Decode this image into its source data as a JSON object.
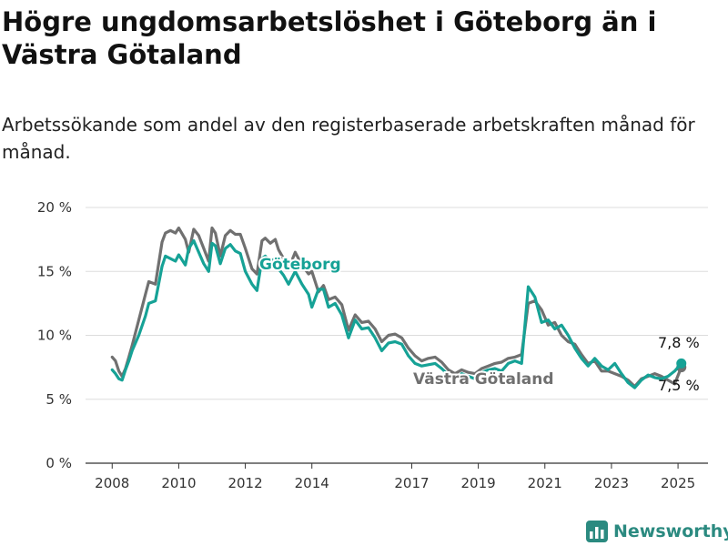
{
  "chart_data": {
    "type": "line",
    "title": "Högre ungdomsarbetslöshet i Göteborg än i Västra Götaland",
    "subtitle": "Arbetssökande som andel av den registerbaserade arbetskraften månad för månad.",
    "y_ticks": [
      "0 %",
      "5 %",
      "10 %",
      "15 %",
      "20 %"
    ],
    "y_tick_values": [
      0,
      5,
      10,
      15,
      20
    ],
    "x_ticks": [
      "2008",
      "2010",
      "2012",
      "2014",
      "2017",
      "2019",
      "2021",
      "2023",
      "2025"
    ],
    "x_tick_values": [
      2008,
      2010,
      2012,
      2014,
      2017,
      2019,
      2021,
      2023,
      2025
    ],
    "xlim": [
      2007.2,
      2025.9
    ],
    "ylim": [
      0,
      20
    ],
    "grid": true,
    "series": [
      {
        "name": "Västra Götaland",
        "color": "#707070",
        "end_label": "7,5 %",
        "x": [
          2008.0,
          2008.1,
          2008.2,
          2008.3,
          2008.4,
          2008.5,
          2008.6,
          2008.8,
          2009.0,
          2009.1,
          2009.3,
          2009.5,
          2009.6,
          2009.75,
          2009.9,
          2010.0,
          2010.2,
          2010.3,
          2010.45,
          2010.6,
          2010.75,
          2010.9,
          2011.0,
          2011.1,
          2011.25,
          2011.4,
          2011.55,
          2011.7,
          2011.85,
          2012.0,
          2012.2,
          2012.35,
          2012.5,
          2012.6,
          2012.75,
          2012.9,
          2013.0,
          2013.15,
          2013.3,
          2013.5,
          2013.7,
          2013.9,
          2014.0,
          2014.2,
          2014.35,
          2014.5,
          2014.7,
          2014.9,
          2015.1,
          2015.3,
          2015.5,
          2015.7,
          2015.9,
          2016.1,
          2016.3,
          2016.5,
          2016.7,
          2016.9,
          2017.1,
          2017.3,
          2017.5,
          2017.7,
          2017.9,
          2018.1,
          2018.3,
          2018.5,
          2018.7,
          2018.9,
          2019.1,
          2019.3,
          2019.5,
          2019.7,
          2019.9,
          2020.1,
          2020.3,
          2020.5,
          2020.7,
          2020.9,
          2021.1,
          2021.3,
          2021.5,
          2021.7,
          2021.9,
          2022.1,
          2022.3,
          2022.5,
          2022.7,
          2022.9,
          2023.1,
          2023.3,
          2023.5,
          2023.7,
          2023.9,
          2024.1,
          2024.3,
          2024.5,
          2024.7,
          2024.9,
          2025.1
        ],
        "y": [
          8.3,
          8.0,
          7.2,
          6.8,
          7.4,
          8.3,
          9.2,
          11.2,
          13.2,
          14.2,
          14.0,
          17.3,
          18.0,
          18.2,
          18.0,
          18.4,
          17.5,
          16.5,
          18.3,
          17.8,
          16.8,
          15.8,
          18.4,
          18.0,
          16.2,
          17.8,
          18.2,
          17.9,
          17.9,
          16.8,
          15.2,
          14.8,
          17.4,
          17.6,
          17.2,
          17.5,
          16.7,
          16.0,
          15.2,
          16.5,
          15.5,
          14.8,
          15.0,
          13.4,
          13.9,
          12.8,
          13.0,
          12.4,
          10.4,
          11.6,
          11.0,
          11.1,
          10.5,
          9.5,
          10.0,
          10.1,
          9.8,
          9.0,
          8.4,
          8.0,
          8.2,
          8.3,
          7.9,
          7.3,
          7.0,
          7.3,
          7.1,
          7.0,
          7.4,
          7.6,
          7.8,
          7.9,
          8.2,
          8.3,
          8.5,
          12.5,
          12.7,
          12.0,
          10.8,
          11.0,
          10.0,
          9.5,
          9.3,
          8.5,
          7.8,
          8.0,
          7.2,
          7.2,
          7.0,
          6.8,
          6.5,
          6.0,
          6.6,
          6.8,
          7.0,
          6.8,
          6.5,
          6.2,
          7.5
        ]
      },
      {
        "name": "Göteborg",
        "color": "#16a296",
        "end_label": "7,8 %",
        "x": [
          2008.0,
          2008.1,
          2008.2,
          2008.3,
          2008.4,
          2008.5,
          2008.6,
          2008.8,
          2009.0,
          2009.1,
          2009.3,
          2009.5,
          2009.6,
          2009.75,
          2009.9,
          2010.0,
          2010.2,
          2010.3,
          2010.45,
          2010.6,
          2010.75,
          2010.9,
          2011.0,
          2011.1,
          2011.25,
          2011.4,
          2011.55,
          2011.7,
          2011.85,
          2012.0,
          2012.2,
          2012.35,
          2012.5,
          2012.6,
          2012.75,
          2012.9,
          2013.0,
          2013.15,
          2013.3,
          2013.5,
          2013.7,
          2013.9,
          2014.0,
          2014.2,
          2014.35,
          2014.5,
          2014.7,
          2014.9,
          2015.1,
          2015.3,
          2015.5,
          2015.7,
          2015.9,
          2016.1,
          2016.3,
          2016.5,
          2016.7,
          2016.9,
          2017.1,
          2017.3,
          2017.5,
          2017.7,
          2017.9,
          2018.1,
          2018.3,
          2018.5,
          2018.7,
          2018.9,
          2019.1,
          2019.3,
          2019.5,
          2019.7,
          2019.9,
          2020.1,
          2020.3,
          2020.5,
          2020.7,
          2020.9,
          2021.1,
          2021.3,
          2021.5,
          2021.7,
          2021.9,
          2022.1,
          2022.3,
          2022.5,
          2022.7,
          2022.9,
          2023.1,
          2023.3,
          2023.5,
          2023.7,
          2023.9,
          2024.1,
          2024.3,
          2024.5,
          2024.7,
          2024.9,
          2025.1
        ],
        "y": [
          7.3,
          7.0,
          6.6,
          6.5,
          7.3,
          8.0,
          8.8,
          10.0,
          11.5,
          12.5,
          12.7,
          15.4,
          16.2,
          16.0,
          15.8,
          16.3,
          15.5,
          16.8,
          17.4,
          16.5,
          15.6,
          15.0,
          17.2,
          17.0,
          15.6,
          16.8,
          17.1,
          16.6,
          16.4,
          15.0,
          14.0,
          13.5,
          16.0,
          16.2,
          15.8,
          16.0,
          15.2,
          14.7,
          14.0,
          15.0,
          14.0,
          13.2,
          12.2,
          13.6,
          13.6,
          12.2,
          12.5,
          11.6,
          9.8,
          11.2,
          10.5,
          10.6,
          9.8,
          8.8,
          9.4,
          9.5,
          9.3,
          8.4,
          7.8,
          7.6,
          7.7,
          7.8,
          7.4,
          6.9,
          6.6,
          7.0,
          6.8,
          6.6,
          7.1,
          7.3,
          7.4,
          7.2,
          7.8,
          8.0,
          7.8,
          13.8,
          13.0,
          11.0,
          11.2,
          10.5,
          10.8,
          10.0,
          9.0,
          8.2,
          7.6,
          8.2,
          7.6,
          7.3,
          7.8,
          7.0,
          6.3,
          5.9,
          6.5,
          6.9,
          6.7,
          6.6,
          6.8,
          7.2,
          7.8
        ]
      }
    ]
  },
  "brand": {
    "name": "Newsworthy",
    "color": "#2b8a80"
  }
}
